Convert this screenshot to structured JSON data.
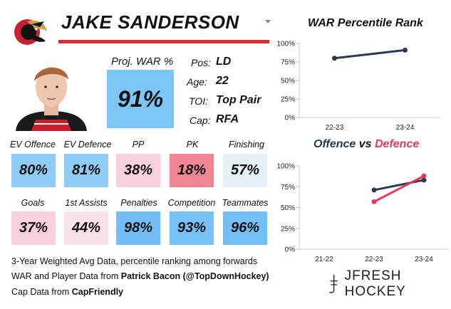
{
  "player": {
    "name": "JAKE SANDERSON",
    "proj_war_label": "Proj. WAR %",
    "proj_war_value": "91%",
    "proj_war_color": "#7cc6f7",
    "info": [
      {
        "label": "Pos:",
        "value": "LD"
      },
      {
        "label": "Age:",
        "value": "22"
      },
      {
        "label": "TOI:",
        "value": "Top Pair"
      },
      {
        "label": "Cap:",
        "value": "RFA"
      }
    ]
  },
  "stats": [
    {
      "label": "EV Offence",
      "value": "80%",
      "color": "#8fcdf6"
    },
    {
      "label": "EV Defence",
      "value": "81%",
      "color": "#8fcdf6"
    },
    {
      "label": "PP",
      "value": "38%",
      "color": "#f8d1da"
    },
    {
      "label": "PK",
      "value": "18%",
      "color": "#f08593"
    },
    {
      "label": "Finishing",
      "value": "57%",
      "color": "#e6f1f8"
    },
    {
      "label": "Goals",
      "value": "37%",
      "color": "#f8d1da"
    },
    {
      "label": "1st Assists",
      "value": "44%",
      "color": "#f8e3e8"
    },
    {
      "label": "Penalties",
      "value": "98%",
      "color": "#71bff6"
    },
    {
      "label": "Competition",
      "value": "93%",
      "color": "#76c2f6"
    },
    {
      "label": "Teammates",
      "value": "96%",
      "color": "#73c0f6"
    }
  ],
  "footer": {
    "line1": "3-Year Weighted Avg Data, percentile ranking among forwards",
    "line2_prefix": "WAR and Player Data from ",
    "line2_bold": "Patrick Bacon (@TopDownHockey)",
    "line3_prefix": "Cap Data from ",
    "line3_bold": "CapFriendly"
  },
  "brand": {
    "logo_text": "JFRESH HOCKEY"
  },
  "chart_data": [
    {
      "type": "line",
      "title": "WAR Percentile Rank",
      "x": [
        "22-23",
        "23-24"
      ],
      "y_ticks": [
        "100%",
        "75%",
        "50%",
        "25%",
        "0%"
      ],
      "ylim": [
        0,
        100
      ],
      "grid": false,
      "series": [
        {
          "values": [
            80,
            91
          ],
          "color": "#2b3a4f"
        }
      ]
    },
    {
      "type": "line",
      "title_part1": "Offence",
      "title_part2": "vs",
      "title_part3": "Defence",
      "x": [
        "21-22",
        "22-23",
        "23-24"
      ],
      "y_ticks": [
        "100%",
        "75%",
        "50%",
        "25%",
        "0%"
      ],
      "ylim": [
        0,
        100
      ],
      "grid": false,
      "series": [
        {
          "name": "Offence",
          "values": [
            null,
            71,
            83
          ],
          "color": "#2b3a4f"
        },
        {
          "name": "Defence",
          "values": [
            null,
            57,
            88
          ],
          "color": "#e63a59"
        }
      ]
    }
  ]
}
